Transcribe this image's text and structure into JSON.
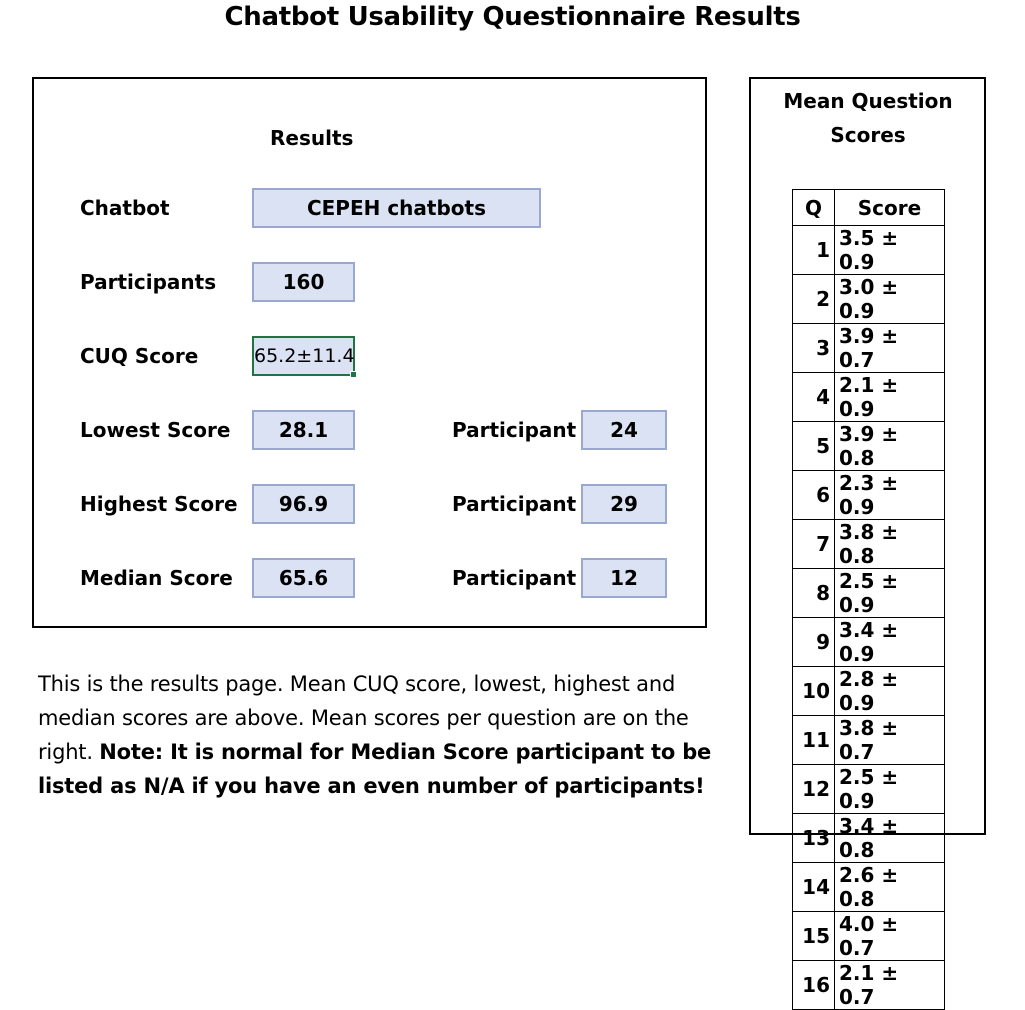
{
  "title": "Chatbot Usability Questionnaire Results",
  "results": {
    "heading": "Results",
    "chatbot_label": "Chatbot",
    "chatbot_value": "CEPEH chatbots",
    "participants_label": "Participants",
    "participants_value": "160",
    "cuq_label": "CUQ Score",
    "cuq_value": "65.2±11.4",
    "lowest_label": "Lowest Score",
    "lowest_value": "28.1",
    "lowest_participant_label": "Participant",
    "lowest_participant": "24",
    "highest_label": "Highest Score",
    "highest_value": "96.9",
    "highest_participant_label": "Participant",
    "highest_participant": "29",
    "median_label": "Median Score",
    "median_value": "65.6",
    "median_participant_label": "Participant",
    "median_participant": "12"
  },
  "description": {
    "text": "This is the results page.  Mean CUQ score,  lowest, highest and median scores are above.  Mean scores per question are on the right. ",
    "note": "Note: It is normal for Median Score participant to be listed as N/A if you have an even number of participants!"
  },
  "mean_questions": {
    "title": "Mean Question Scores",
    "headers": {
      "q": "Q",
      "score": "Score"
    },
    "rows": [
      {
        "q": "1",
        "score": "3.5 ± 0.9"
      },
      {
        "q": "2",
        "score": "3.0 ± 0.9"
      },
      {
        "q": "3",
        "score": "3.9 ± 0.7"
      },
      {
        "q": "4",
        "score": "2.1 ± 0.9"
      },
      {
        "q": "5",
        "score": "3.9 ± 0.8"
      },
      {
        "q": "6",
        "score": "2.3 ± 0.9"
      },
      {
        "q": "7",
        "score": "3.8 ± 0.8"
      },
      {
        "q": "8",
        "score": "2.5 ± 0.9"
      },
      {
        "q": "9",
        "score": "3.4 ± 0.9"
      },
      {
        "q": "10",
        "score": "2.8 ± 0.9"
      },
      {
        "q": "11",
        "score": "3.8 ± 0.7"
      },
      {
        "q": "12",
        "score": "2.5 ± 0.9"
      },
      {
        "q": "13",
        "score": "3.4 ± 0.8"
      },
      {
        "q": "14",
        "score": "2.6 ± 0.8"
      },
      {
        "q": "15",
        "score": "4.0 ± 0.7"
      },
      {
        "q": "16",
        "score": "2.1 ± 0.7"
      }
    ]
  }
}
